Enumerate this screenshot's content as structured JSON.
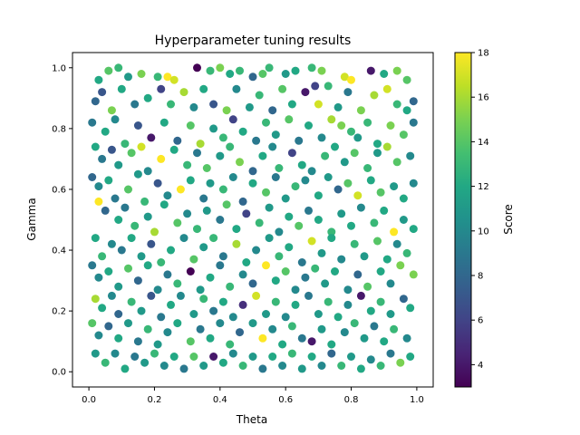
{
  "chart_data": {
    "type": "scatter",
    "title": "Hyperparameter tuning results",
    "xlabel": "Theta",
    "ylabel": "Gamma",
    "xlim": [
      -0.05,
      1.05
    ],
    "ylim": [
      -0.05,
      1.05
    ],
    "x_ticks": [
      "0.0",
      "0.2",
      "0.4",
      "0.6",
      "0.8",
      "1.0"
    ],
    "y_ticks": [
      "0.0",
      "0.2",
      "0.4",
      "0.6",
      "0.8",
      "1.0"
    ],
    "colorbar": {
      "label": "Score",
      "min": 3,
      "max": 18,
      "colormap": "viridis",
      "ticks": [
        "4",
        "6",
        "8",
        "10",
        "12",
        "14",
        "16",
        "18"
      ]
    },
    "grid": false,
    "point_color_range": "values are estimated samples of a dense uniform cloud",
    "points": [
      [
        0.03,
        0.96,
        12
      ],
      [
        0.06,
        0.99,
        14
      ],
      [
        0.09,
        1.0,
        13
      ],
      [
        0.12,
        0.97,
        11
      ],
      [
        0.16,
        0.98,
        15
      ],
      [
        0.21,
        0.97,
        13
      ],
      [
        0.24,
        0.97,
        18
      ],
      [
        0.26,
        0.96,
        17
      ],
      [
        0.33,
        1.0,
        3
      ],
      [
        0.37,
        0.99,
        13
      ],
      [
        0.4,
        1.0,
        15
      ],
      [
        0.43,
        0.98,
        12
      ],
      [
        0.46,
        0.99,
        13
      ],
      [
        0.5,
        0.97,
        8
      ],
      [
        0.53,
        0.98,
        14
      ],
      [
        0.55,
        1.0,
        13
      ],
      [
        0.6,
        0.98,
        11
      ],
      [
        0.63,
        0.99,
        12
      ],
      [
        0.68,
        1.0,
        13
      ],
      [
        0.71,
        0.99,
        15
      ],
      [
        0.78,
        0.97,
        17
      ],
      [
        0.8,
        0.96,
        18
      ],
      [
        0.86,
        0.99,
        4
      ],
      [
        0.9,
        0.98,
        12
      ],
      [
        0.94,
        0.99,
        15
      ],
      [
        0.97,
        0.96,
        14
      ],
      [
        0.02,
        0.89,
        8
      ],
      [
        0.04,
        0.92,
        7
      ],
      [
        0.07,
        0.86,
        15
      ],
      [
        0.1,
        0.93,
        12
      ],
      [
        0.14,
        0.88,
        9
      ],
      [
        0.18,
        0.9,
        12
      ],
      [
        0.22,
        0.93,
        6
      ],
      [
        0.25,
        0.88,
        13
      ],
      [
        0.29,
        0.92,
        16
      ],
      [
        0.32,
        0.87,
        10
      ],
      [
        0.35,
        0.93,
        12
      ],
      [
        0.38,
        0.88,
        7
      ],
      [
        0.42,
        0.86,
        15
      ],
      [
        0.45,
        0.93,
        10
      ],
      [
        0.49,
        0.87,
        11
      ],
      [
        0.52,
        0.91,
        13
      ],
      [
        0.56,
        0.86,
        8
      ],
      [
        0.59,
        0.93,
        14
      ],
      [
        0.62,
        0.88,
        12
      ],
      [
        0.66,
        0.92,
        4
      ],
      [
        0.69,
        0.94,
        6
      ],
      [
        0.7,
        0.88,
        17
      ],
      [
        0.73,
        0.94,
        13
      ],
      [
        0.76,
        0.87,
        11
      ],
      [
        0.79,
        0.92,
        9
      ],
      [
        0.83,
        0.86,
        15
      ],
      [
        0.87,
        0.91,
        16
      ],
      [
        0.91,
        0.93,
        17
      ],
      [
        0.94,
        0.88,
        13
      ],
      [
        0.97,
        0.86,
        12
      ],
      [
        0.99,
        0.89,
        8
      ],
      [
        0.01,
        0.82,
        9
      ],
      [
        0.05,
        0.79,
        12
      ],
      [
        0.08,
        0.83,
        10
      ],
      [
        0.11,
        0.75,
        13
      ],
      [
        0.15,
        0.81,
        7
      ],
      [
        0.19,
        0.77,
        4
      ],
      [
        0.23,
        0.82,
        12
      ],
      [
        0.27,
        0.76,
        8
      ],
      [
        0.31,
        0.81,
        14
      ],
      [
        0.34,
        0.75,
        16
      ],
      [
        0.38,
        0.8,
        11
      ],
      [
        0.41,
        0.77,
        13
      ],
      [
        0.44,
        0.83,
        6
      ],
      [
        0.47,
        0.79,
        12
      ],
      [
        0.51,
        0.76,
        9
      ],
      [
        0.54,
        0.82,
        13
      ],
      [
        0.57,
        0.78,
        11
      ],
      [
        0.61,
        0.83,
        14
      ],
      [
        0.64,
        0.76,
        9
      ],
      [
        0.67,
        0.81,
        12
      ],
      [
        0.71,
        0.77,
        10
      ],
      [
        0.74,
        0.83,
        16
      ],
      [
        0.77,
        0.81,
        15
      ],
      [
        0.8,
        0.79,
        13
      ],
      [
        0.82,
        0.77,
        11
      ],
      [
        0.85,
        0.82,
        13
      ],
      [
        0.88,
        0.75,
        12
      ],
      [
        0.92,
        0.81,
        15
      ],
      [
        0.96,
        0.78,
        14
      ],
      [
        0.99,
        0.82,
        9
      ],
      [
        0.02,
        0.74,
        12
      ],
      [
        0.04,
        0.7,
        9
      ],
      [
        0.07,
        0.73,
        7
      ],
      [
        0.09,
        0.68,
        11
      ],
      [
        0.13,
        0.72,
        14
      ],
      [
        0.16,
        0.74,
        17
      ],
      [
        0.18,
        0.66,
        10
      ],
      [
        0.22,
        0.7,
        18
      ],
      [
        0.26,
        0.73,
        12
      ],
      [
        0.3,
        0.68,
        13
      ],
      [
        0.33,
        0.72,
        9
      ],
      [
        0.36,
        0.67,
        14
      ],
      [
        0.4,
        0.71,
        11
      ],
      [
        0.43,
        0.74,
        13
      ],
      [
        0.46,
        0.69,
        15
      ],
      [
        0.5,
        0.66,
        8
      ],
      [
        0.53,
        0.71,
        12
      ],
      [
        0.56,
        0.74,
        10
      ],
      [
        0.58,
        0.67,
        13
      ],
      [
        0.62,
        0.72,
        6
      ],
      [
        0.65,
        0.68,
        12
      ],
      [
        0.68,
        0.66,
        10
      ],
      [
        0.72,
        0.71,
        13
      ],
      [
        0.75,
        0.74,
        12
      ],
      [
        0.78,
        0.69,
        11
      ],
      [
        0.81,
        0.72,
        14
      ],
      [
        0.85,
        0.67,
        13
      ],
      [
        0.88,
        0.72,
        11
      ],
      [
        0.91,
        0.74,
        16
      ],
      [
        0.94,
        0.69,
        14
      ],
      [
        0.98,
        0.71,
        10
      ],
      [
        0.01,
        0.64,
        8
      ],
      [
        0.03,
        0.61,
        10
      ],
      [
        0.06,
        0.63,
        12
      ],
      [
        0.08,
        0.57,
        9
      ],
      [
        0.12,
        0.6,
        14
      ],
      [
        0.15,
        0.65,
        11
      ],
      [
        0.17,
        0.56,
        13
      ],
      [
        0.21,
        0.62,
        7
      ],
      [
        0.24,
        0.58,
        10
      ],
      [
        0.28,
        0.6,
        18
      ],
      [
        0.31,
        0.63,
        12
      ],
      [
        0.35,
        0.57,
        9
      ],
      [
        0.37,
        0.62,
        11
      ],
      [
        0.41,
        0.6,
        13
      ],
      [
        0.44,
        0.64,
        10
      ],
      [
        0.47,
        0.56,
        8
      ],
      [
        0.5,
        0.62,
        12
      ],
      [
        0.54,
        0.59,
        14
      ],
      [
        0.57,
        0.64,
        9
      ],
      [
        0.6,
        0.57,
        11
      ],
      [
        0.63,
        0.61,
        13
      ],
      [
        0.66,
        0.63,
        10
      ],
      [
        0.7,
        0.58,
        12
      ],
      [
        0.73,
        0.64,
        11
      ],
      [
        0.76,
        0.6,
        8
      ],
      [
        0.79,
        0.62,
        14
      ],
      [
        0.82,
        0.58,
        17
      ],
      [
        0.86,
        0.63,
        12
      ],
      [
        0.89,
        0.59,
        14
      ],
      [
        0.93,
        0.61,
        11
      ],
      [
        0.96,
        0.57,
        12
      ],
      [
        0.99,
        0.62,
        10
      ],
      [
        0.03,
        0.56,
        18
      ],
      [
        0.05,
        0.53,
        8
      ],
      [
        0.09,
        0.5,
        12
      ],
      [
        0.11,
        0.54,
        9
      ],
      [
        0.14,
        0.48,
        13
      ],
      [
        0.18,
        0.51,
        11
      ],
      [
        0.2,
        0.46,
        16
      ],
      [
        0.23,
        0.55,
        12
      ],
      [
        0.27,
        0.49,
        14
      ],
      [
        0.3,
        0.52,
        10
      ],
      [
        0.33,
        0.47,
        13
      ],
      [
        0.36,
        0.53,
        11
      ],
      [
        0.4,
        0.5,
        9
      ],
      [
        0.42,
        0.55,
        14
      ],
      [
        0.45,
        0.47,
        12
      ],
      [
        0.48,
        0.52,
        6
      ],
      [
        0.52,
        0.49,
        13
      ],
      [
        0.55,
        0.54,
        11
      ],
      [
        0.58,
        0.46,
        10
      ],
      [
        0.61,
        0.51,
        12
      ],
      [
        0.64,
        0.48,
        14
      ],
      [
        0.67,
        0.53,
        9
      ],
      [
        0.7,
        0.5,
        12
      ],
      [
        0.74,
        0.46,
        13
      ],
      [
        0.77,
        0.52,
        11
      ],
      [
        0.8,
        0.48,
        12
      ],
      [
        0.83,
        0.54,
        10
      ],
      [
        0.87,
        0.49,
        13
      ],
      [
        0.9,
        0.53,
        12
      ],
      [
        0.93,
        0.46,
        18
      ],
      [
        0.96,
        0.5,
        11
      ],
      [
        0.99,
        0.47,
        12
      ],
      [
        0.02,
        0.44,
        12
      ],
      [
        0.04,
        0.38,
        13
      ],
      [
        0.07,
        0.42,
        10
      ],
      [
        0.1,
        0.4,
        9
      ],
      [
        0.13,
        0.44,
        12
      ],
      [
        0.16,
        0.38,
        11
      ],
      [
        0.19,
        0.42,
        7
      ],
      [
        0.22,
        0.36,
        13
      ],
      [
        0.25,
        0.4,
        12
      ],
      [
        0.29,
        0.44,
        10
      ],
      [
        0.32,
        0.37,
        14
      ],
      [
        0.35,
        0.41,
        11
      ],
      [
        0.38,
        0.44,
        13
      ],
      [
        0.41,
        0.38,
        9
      ],
      [
        0.45,
        0.42,
        16
      ],
      [
        0.48,
        0.36,
        12
      ],
      [
        0.51,
        0.4,
        10
      ],
      [
        0.55,
        0.44,
        11
      ],
      [
        0.58,
        0.38,
        13
      ],
      [
        0.61,
        0.41,
        12
      ],
      [
        0.65,
        0.36,
        9
      ],
      [
        0.68,
        0.43,
        17
      ],
      [
        0.71,
        0.39,
        11
      ],
      [
        0.74,
        0.44,
        12
      ],
      [
        0.77,
        0.37,
        10
      ],
      [
        0.81,
        0.42,
        13
      ],
      [
        0.84,
        0.38,
        11
      ],
      [
        0.88,
        0.43,
        14
      ],
      [
        0.91,
        0.37,
        12
      ],
      [
        0.94,
        0.42,
        10
      ],
      [
        0.97,
        0.39,
        13
      ],
      [
        0.01,
        0.35,
        9
      ],
      [
        0.03,
        0.31,
        10
      ],
      [
        0.06,
        0.33,
        12
      ],
      [
        0.09,
        0.28,
        11
      ],
      [
        0.12,
        0.34,
        14
      ],
      [
        0.15,
        0.3,
        8
      ],
      [
        0.18,
        0.35,
        12
      ],
      [
        0.21,
        0.27,
        10
      ],
      [
        0.24,
        0.32,
        9
      ],
      [
        0.27,
        0.29,
        13
      ],
      [
        0.31,
        0.33,
        3
      ],
      [
        0.34,
        0.27,
        11
      ],
      [
        0.37,
        0.31,
        12
      ],
      [
        0.4,
        0.35,
        9
      ],
      [
        0.43,
        0.28,
        13
      ],
      [
        0.47,
        0.32,
        10
      ],
      [
        0.5,
        0.29,
        8
      ],
      [
        0.54,
        0.35,
        18
      ],
      [
        0.57,
        0.3,
        12
      ],
      [
        0.6,
        0.33,
        14
      ],
      [
        0.63,
        0.27,
        10
      ],
      [
        0.66,
        0.31,
        9
      ],
      [
        0.69,
        0.34,
        13
      ],
      [
        0.72,
        0.29,
        11
      ],
      [
        0.75,
        0.33,
        12
      ],
      [
        0.79,
        0.27,
        10
      ],
      [
        0.82,
        0.32,
        8
      ],
      [
        0.85,
        0.28,
        14
      ],
      [
        0.89,
        0.33,
        12
      ],
      [
        0.92,
        0.29,
        10
      ],
      [
        0.95,
        0.35,
        15
      ],
      [
        0.99,
        0.32,
        15
      ],
      [
        0.02,
        0.24,
        16
      ],
      [
        0.04,
        0.21,
        12
      ],
      [
        0.07,
        0.25,
        10
      ],
      [
        0.09,
        0.19,
        8
      ],
      [
        0.13,
        0.23,
        13
      ],
      [
        0.16,
        0.2,
        11
      ],
      [
        0.19,
        0.25,
        7
      ],
      [
        0.22,
        0.18,
        9
      ],
      [
        0.25,
        0.22,
        12
      ],
      [
        0.28,
        0.25,
        10
      ],
      [
        0.32,
        0.19,
        11
      ],
      [
        0.35,
        0.24,
        13
      ],
      [
        0.38,
        0.2,
        9
      ],
      [
        0.41,
        0.23,
        12
      ],
      [
        0.44,
        0.18,
        10
      ],
      [
        0.47,
        0.22,
        5
      ],
      [
        0.51,
        0.25,
        17
      ],
      [
        0.54,
        0.19,
        11
      ],
      [
        0.57,
        0.23,
        13
      ],
      [
        0.6,
        0.18,
        10
      ],
      [
        0.63,
        0.22,
        12
      ],
      [
        0.67,
        0.25,
        9
      ],
      [
        0.7,
        0.19,
        11
      ],
      [
        0.73,
        0.23,
        13
      ],
      [
        0.76,
        0.18,
        12
      ],
      [
        0.79,
        0.22,
        10
      ],
      [
        0.83,
        0.25,
        4
      ],
      [
        0.86,
        0.2,
        12
      ],
      [
        0.89,
        0.23,
        13
      ],
      [
        0.92,
        0.19,
        11
      ],
      [
        0.96,
        0.24,
        8
      ],
      [
        0.98,
        0.21,
        12
      ],
      [
        0.01,
        0.16,
        14
      ],
      [
        0.03,
        0.12,
        10
      ],
      [
        0.06,
        0.15,
        8
      ],
      [
        0.09,
        0.11,
        12
      ],
      [
        0.12,
        0.16,
        11
      ],
      [
        0.15,
        0.1,
        9
      ],
      [
        0.18,
        0.14,
        13
      ],
      [
        0.21,
        0.09,
        11
      ],
      [
        0.24,
        0.13,
        10
      ],
      [
        0.27,
        0.16,
        12
      ],
      [
        0.31,
        0.1,
        14
      ],
      [
        0.34,
        0.14,
        9
      ],
      [
        0.37,
        0.11,
        12
      ],
      [
        0.4,
        0.16,
        10
      ],
      [
        0.43,
        0.09,
        13
      ],
      [
        0.46,
        0.13,
        8
      ],
      [
        0.5,
        0.16,
        11
      ],
      [
        0.53,
        0.11,
        18
      ],
      [
        0.56,
        0.14,
        10
      ],
      [
        0.59,
        0.09,
        12
      ],
      [
        0.62,
        0.15,
        13
      ],
      [
        0.65,
        0.11,
        9
      ],
      [
        0.68,
        0.1,
        4
      ],
      [
        0.71,
        0.14,
        11
      ],
      [
        0.74,
        0.09,
        12
      ],
      [
        0.78,
        0.13,
        10
      ],
      [
        0.81,
        0.16,
        13
      ],
      [
        0.84,
        0.11,
        11
      ],
      [
        0.87,
        0.15,
        9
      ],
      [
        0.9,
        0.1,
        12
      ],
      [
        0.93,
        0.14,
        13
      ],
      [
        0.97,
        0.11,
        10
      ],
      [
        0.02,
        0.06,
        11
      ],
      [
        0.05,
        0.03,
        13
      ],
      [
        0.08,
        0.06,
        10
      ],
      [
        0.11,
        0.01,
        12
      ],
      [
        0.14,
        0.05,
        9
      ],
      [
        0.17,
        0.03,
        11
      ],
      [
        0.2,
        0.06,
        13
      ],
      [
        0.23,
        0.02,
        10
      ],
      [
        0.26,
        0.05,
        12
      ],
      [
        0.29,
        0.01,
        9
      ],
      [
        0.32,
        0.05,
        14
      ],
      [
        0.35,
        0.02,
        11
      ],
      [
        0.38,
        0.05,
        4
      ],
      [
        0.41,
        0.03,
        12
      ],
      [
        0.44,
        0.06,
        10
      ],
      [
        0.47,
        0.02,
        13
      ],
      [
        0.5,
        0.05,
        11
      ],
      [
        0.53,
        0.01,
        9
      ],
      [
        0.56,
        0.05,
        12
      ],
      [
        0.59,
        0.02,
        10
      ],
      [
        0.62,
        0.06,
        13
      ],
      [
        0.65,
        0.01,
        11
      ],
      [
        0.68,
        0.05,
        12
      ],
      [
        0.71,
        0.02,
        10
      ],
      [
        0.74,
        0.06,
        8
      ],
      [
        0.77,
        0.02,
        13
      ],
      [
        0.8,
        0.05,
        11
      ],
      [
        0.83,
        0.01,
        12
      ],
      [
        0.86,
        0.04,
        10
      ],
      [
        0.89,
        0.02,
        13
      ],
      [
        0.92,
        0.06,
        9
      ],
      [
        0.95,
        0.03,
        15
      ],
      [
        0.98,
        0.05,
        12
      ]
    ]
  }
}
